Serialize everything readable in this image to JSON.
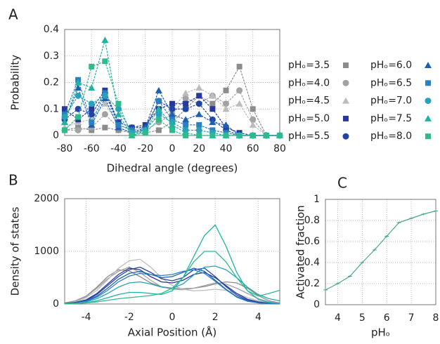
{
  "chart_data": [
    {
      "type": "line",
      "label": "A",
      "xlabel": "Dihedral angle (degrees)",
      "ylabel": "Probability",
      "x": [
        -80,
        -70,
        -60,
        -50,
        -40,
        -30,
        -20,
        -10,
        0,
        10,
        20,
        30,
        40,
        50,
        60,
        70,
        80
      ],
      "xlim": [
        -80,
        80
      ],
      "xticks": [
        -80,
        -60,
        -40,
        -20,
        0,
        20,
        40,
        60,
        80
      ],
      "ylim": [
        0,
        0.4
      ],
      "yticks": [
        0,
        0.1,
        0.2,
        0.3,
        0.4
      ],
      "grid": true,
      "legend": "right",
      "series": [
        {
          "name": "pHₒ=3.5",
          "color": "#8c8c8c",
          "marker": "square",
          "values": [
            0.02,
            0.03,
            0.02,
            0.03,
            0.02,
            0.01,
            0.01,
            0.02,
            0.05,
            0.1,
            0.15,
            0.12,
            0.17,
            0.26,
            0.1,
            0,
            0
          ]
        },
        {
          "name": "pHₒ=4.0",
          "color": "#a2a2a2",
          "marker": "circle",
          "values": [
            0.02,
            0.02,
            0.03,
            0.08,
            0.03,
            0.01,
            0.02,
            0.05,
            0.08,
            0.14,
            0.12,
            0.15,
            0.12,
            0.17,
            0.06,
            0,
            0
          ]
        },
        {
          "name": "pHₒ=4.5",
          "color": "#bcbcbc",
          "marker": "triangle",
          "values": [
            0.03,
            0.05,
            0.06,
            0.12,
            0.04,
            0.02,
            0.03,
            0.07,
            0.1,
            0.16,
            0.18,
            0.15,
            0.1,
            0.12,
            0.04,
            0,
            0
          ]
        },
        {
          "name": "pHₒ=5.0",
          "color": "#27389a",
          "marker": "square",
          "values": [
            0.1,
            0.06,
            0.1,
            0.17,
            0.05,
            0.03,
            0.04,
            0.1,
            0.12,
            0.12,
            0.15,
            0.1,
            0.03,
            0.01,
            0,
            0,
            0
          ]
        },
        {
          "name": "pHₒ=5.5",
          "color": "#2444a4",
          "marker": "circle",
          "values": [
            0.06,
            0.1,
            0.08,
            0.16,
            0.05,
            0.03,
            0.03,
            0.13,
            0.1,
            0.1,
            0.12,
            0.06,
            0.02,
            0,
            0,
            0,
            0
          ]
        },
        {
          "name": "pHₒ=6.0",
          "color": "#1f5fb2",
          "marker": "triangle",
          "values": [
            0.05,
            0.18,
            0.04,
            0.14,
            0.03,
            0.01,
            0.03,
            0.17,
            0.08,
            0.06,
            0.08,
            0.05,
            0.04,
            0,
            0,
            0,
            0
          ]
        },
        {
          "name": "pHₒ=6.5",
          "color": "#2a80c2",
          "marker": "square",
          "values": [
            0.08,
            0.21,
            0.05,
            0.16,
            0.04,
            0.02,
            0.02,
            0.13,
            0.06,
            0.04,
            0.04,
            0.02,
            0.01,
            0,
            0,
            0,
            0
          ]
        },
        {
          "name": "pHₒ=7.0",
          "color": "#27a2bb",
          "marker": "circle",
          "values": [
            0.07,
            0.15,
            0.12,
            0.15,
            0.1,
            0.01,
            0.02,
            0.08,
            0.05,
            0.02,
            0.02,
            0.01,
            0,
            0,
            0,
            0,
            0
          ]
        },
        {
          "name": "pHₒ=7.5",
          "color": "#1fb3a3",
          "marker": "triangle",
          "values": [
            0.05,
            0.2,
            0.18,
            0.36,
            0.08,
            0,
            0.02,
            0.1,
            0.04,
            0.01,
            0,
            0,
            0,
            0,
            0,
            0,
            0
          ]
        },
        {
          "name": "pHₒ=8.0",
          "color": "#2fba8e",
          "marker": "square",
          "values": [
            0.02,
            0.07,
            0.26,
            0.28,
            0.12,
            0,
            0.01,
            0.06,
            0.02,
            0,
            0,
            0,
            0,
            0,
            0,
            0,
            0
          ]
        }
      ]
    },
    {
      "type": "line",
      "label": "B",
      "xlabel": "Axial Position (Å)",
      "ylabel": "Density of states",
      "x": [
        -5,
        -4.5,
        -4,
        -3.5,
        -3,
        -2.5,
        -2,
        -1.5,
        -1,
        -0.5,
        0,
        0.5,
        1,
        1.5,
        2,
        2.5,
        3,
        3.5,
        4,
        4.5,
        5
      ],
      "xlim": [
        -5,
        5
      ],
      "xticks": [
        -4,
        -2,
        0,
        2,
        4
      ],
      "ylim": [
        0,
        2000
      ],
      "yticks": [
        0,
        1000,
        2000
      ],
      "grid": true,
      "series": [
        {
          "color": "#8c8c8c",
          "values": [
            20,
            60,
            150,
            320,
            520,
            650,
            630,
            520,
            400,
            330,
            300,
            290,
            300,
            330,
            380,
            420,
            400,
            300,
            160,
            60,
            20
          ]
        },
        {
          "color": "#a2a2a2",
          "values": [
            15,
            50,
            140,
            300,
            480,
            620,
            700,
            600,
            450,
            330,
            280,
            270,
            300,
            350,
            400,
            380,
            300,
            200,
            100,
            40,
            15
          ]
        },
        {
          "color": "#bcbcbc",
          "values": [
            10,
            40,
            120,
            260,
            460,
            680,
            820,
            850,
            700,
            500,
            350,
            280,
            250,
            260,
            280,
            260,
            200,
            120,
            60,
            25,
            10
          ]
        },
        {
          "color": "#27389a",
          "values": [
            10,
            30,
            80,
            200,
            380,
            560,
            680,
            650,
            520,
            420,
            400,
            450,
            560,
            600,
            500,
            350,
            200,
            90,
            40,
            15,
            5
          ]
        },
        {
          "color": "#2444a4",
          "values": [
            8,
            25,
            70,
            180,
            350,
            520,
            650,
            700,
            600,
            480,
            440,
            500,
            650,
            680,
            520,
            330,
            170,
            70,
            25,
            10,
            3
          ]
        },
        {
          "color": "#1f5fb2",
          "values": [
            5,
            20,
            60,
            150,
            300,
            470,
            580,
            620,
            560,
            500,
            520,
            600,
            680,
            620,
            450,
            280,
            140,
            60,
            20,
            8,
            3
          ]
        },
        {
          "color": "#2a80c2",
          "values": [
            5,
            15,
            50,
            130,
            260,
            420,
            530,
            580,
            560,
            540,
            560,
            620,
            650,
            580,
            430,
            270,
            130,
            50,
            20,
            8,
            3
          ]
        },
        {
          "color": "#27a2bb",
          "values": [
            5,
            15,
            40,
            100,
            200,
            320,
            400,
            420,
            380,
            320,
            300,
            380,
            550,
            700,
            720,
            650,
            500,
            320,
            180,
            100,
            60
          ]
        },
        {
          "color": "#1fb3a3",
          "values": [
            3,
            10,
            25,
            60,
            120,
            180,
            220,
            220,
            200,
            180,
            250,
            500,
            900,
            1300,
            1500,
            1100,
            600,
            250,
            90,
            30,
            10
          ]
        },
        {
          "color": "#2fba8e",
          "values": [
            3,
            8,
            20,
            40,
            70,
            100,
            120,
            140,
            160,
            200,
            300,
            500,
            800,
            1000,
            1000,
            800,
            500,
            250,
            150,
            200,
            260
          ]
        }
      ]
    },
    {
      "type": "line",
      "label": "C",
      "xlabel": "pHₒ",
      "ylabel": "Activated fraction",
      "x": [
        3.5,
        4,
        4.5,
        5,
        5.5,
        6,
        6.5,
        7,
        7.5,
        8
      ],
      "values": [
        0.14,
        0.2,
        0.27,
        0.4,
        0.52,
        0.65,
        0.78,
        0.82,
        0.86,
        0.89
      ],
      "errors": [
        0.01,
        0.01,
        0.01,
        0.01,
        0.01,
        0.01,
        0.01,
        0.01,
        0.01,
        0.01
      ],
      "color": "#4aa58a",
      "xlim": [
        3.5,
        8
      ],
      "xticks": [
        4,
        5,
        6,
        7,
        8
      ],
      "ylim": [
        0,
        1
      ],
      "yticks": [
        0,
        0.2,
        0.4,
        0.6,
        0.8,
        1
      ],
      "grid": true
    }
  ]
}
